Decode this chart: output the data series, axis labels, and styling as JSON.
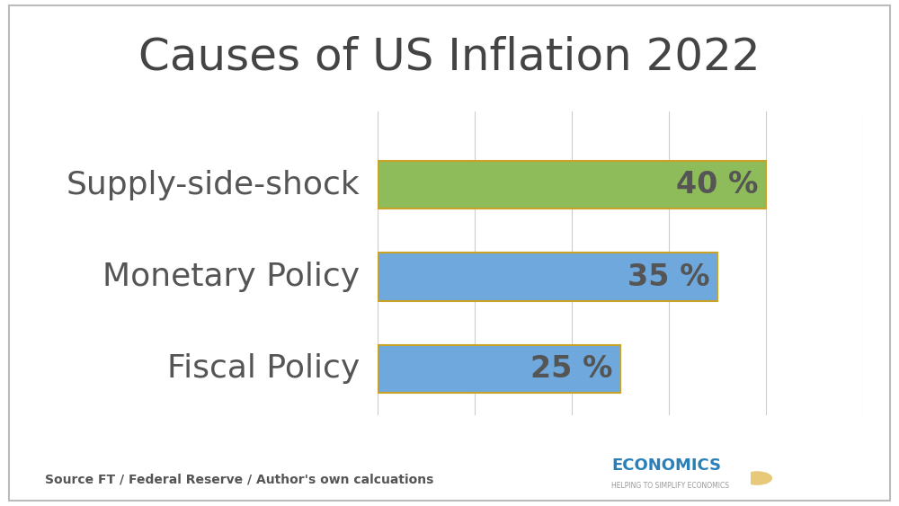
{
  "title": "Causes of US Inflation 2022",
  "categories": [
    "Supply-side-shock",
    "Monetary Policy",
    "Fiscal Policy"
  ],
  "values": [
    40,
    35,
    25
  ],
  "bar_colors": [
    "#8fbc5a",
    "#6fa8dc",
    "#6fa8dc"
  ],
  "bar_edgecolors": [
    "#c9a227",
    "#c9a227",
    "#c9a227"
  ],
  "value_labels": [
    "40 %",
    "35 %",
    "25 %"
  ],
  "source_text": "Source FT / Federal Reserve / Author's own calcuations",
  "title_fontsize": 36,
  "label_fontsize": 26,
  "value_fontsize": 24,
  "source_fontsize": 10,
  "background_color": "#ffffff",
  "text_color": "#555555",
  "xlim": [
    0,
    50
  ],
  "grid_color": "#cccccc",
  "bar_height": 0.52
}
